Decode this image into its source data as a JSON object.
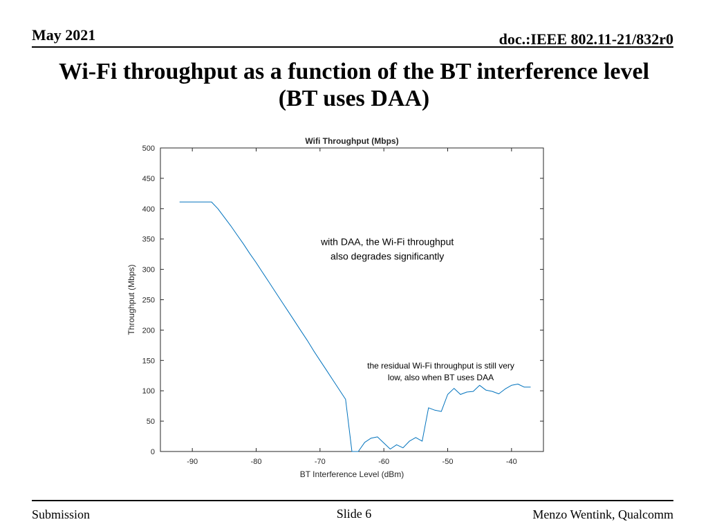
{
  "header": {
    "date": "May 2021",
    "doc_id": "doc.:IEEE 802.11-21/832r0",
    "title_line1": "Wi-Fi throughput as a function of the BT interference level",
    "title_line2": "(BT uses DAA)"
  },
  "footer": {
    "left": "Submission",
    "center": "Slide 6",
    "right": "Menzo Wentink, Qualcomm"
  },
  "colors": {
    "series": "#0072BD",
    "axis": "#262626",
    "grid_tick": "#262626"
  },
  "chart_data": {
    "type": "line",
    "title": "Wifi Throughput (Mbps)",
    "xlabel": "BT Interference Level (dBm)",
    "ylabel": "Throughput (Mbps)",
    "xlim": [
      -95,
      -35
    ],
    "ylim": [
      0,
      500
    ],
    "xticks": [
      -90,
      -80,
      -70,
      -60,
      -50,
      -40
    ],
    "yticks": [
      0,
      50,
      100,
      150,
      200,
      250,
      300,
      350,
      400,
      450,
      500
    ],
    "grid": false,
    "series": [
      {
        "name": "Wifi Throughput",
        "x": [
          -92,
          -91,
          -90,
          -89,
          -88,
          -87,
          -86,
          -85,
          -84,
          -83,
          -82,
          -81,
          -80,
          -79,
          -78,
          -77,
          -76,
          -75,
          -74,
          -73,
          -72,
          -71,
          -70,
          -69,
          -68,
          -67,
          -66,
          -65,
          -64,
          -63,
          -62,
          -61,
          -60,
          -59,
          -58,
          -57,
          -56,
          -55,
          -54,
          -53,
          -52,
          -51,
          -50,
          -49,
          -48,
          -47,
          -46,
          -45,
          -44,
          -43,
          -42,
          -41,
          -40,
          -39,
          -38,
          -37
        ],
        "y": [
          411,
          411,
          411,
          411,
          411,
          411,
          400,
          386,
          372,
          357,
          342,
          326,
          311,
          295,
          279,
          263,
          247,
          231,
          215,
          199,
          183,
          166,
          150,
          134,
          118,
          102,
          86,
          0,
          0,
          15,
          22,
          24,
          14,
          4,
          11,
          6,
          17,
          23,
          17,
          72,
          68,
          66,
          94,
          104,
          94,
          98,
          99,
          109,
          101,
          99,
          95,
          103,
          109,
          111,
          106,
          106
        ]
      }
    ],
    "annotations": [
      {
        "text_line1": "with DAA, the Wi-Fi throughput",
        "text_line2": "also degrades significantly",
        "x": -60,
        "y": 340
      },
      {
        "text_line1": "the residual Wi-Fi throughput is still very",
        "text_line2": "low, also when BT uses DAA",
        "x": -50,
        "y": 140
      }
    ]
  }
}
